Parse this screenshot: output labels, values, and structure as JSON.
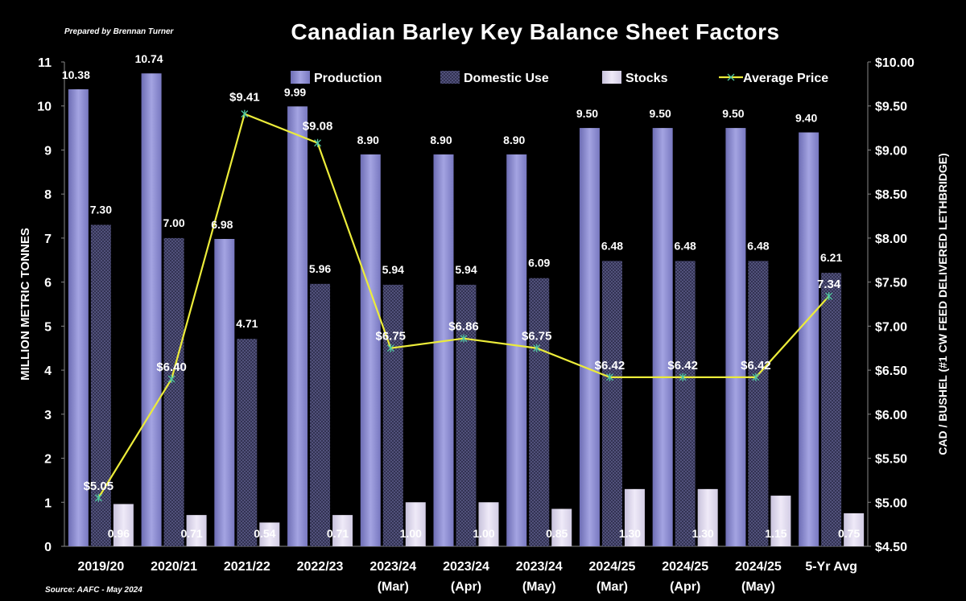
{
  "header": {
    "prepared_by": "Prepared by Brennan Turner",
    "source": "Source: AAFC - May 2024"
  },
  "chart_data": {
    "type": "bar",
    "title": "Canadian Barley Key Balance Sheet Factors",
    "ylabel": "MILLION METRIC TONNES",
    "y2label": "CAD / BUSHEL (#1 CW FEED DELIVERED LETHBRIDGE)",
    "ylim": [
      0,
      11
    ],
    "y2lim": [
      4.5,
      10.0
    ],
    "yticks": [
      "0",
      "1",
      "2",
      "3",
      "4",
      "5",
      "6",
      "7",
      "8",
      "9",
      "10",
      "11"
    ],
    "y2ticks": [
      "$4.50",
      "$5.00",
      "$5.50",
      "$6.00",
      "$6.50",
      "$7.00",
      "$7.50",
      "$8.00",
      "$8.50",
      "$9.00",
      "$9.50",
      "$10.00"
    ],
    "categories": [
      [
        "2019/20"
      ],
      [
        "2020/21"
      ],
      [
        "2021/22"
      ],
      [
        "2022/23"
      ],
      [
        "2023/24",
        "(Mar)"
      ],
      [
        "2023/24",
        "(Apr)"
      ],
      [
        "2023/24",
        "(May)"
      ],
      [
        "2024/25",
        "(Mar)"
      ],
      [
        "2024/25",
        "(Apr)"
      ],
      [
        "2024/25",
        "(May)"
      ],
      [
        "5-Yr Avg"
      ]
    ],
    "series": [
      {
        "name": "Production",
        "type": "bar",
        "color": "#8e8ed0",
        "values": [
          10.38,
          10.74,
          6.98,
          9.99,
          8.9,
          8.9,
          8.9,
          9.5,
          9.5,
          9.5,
          9.4
        ],
        "labels": [
          "10.38",
          "10.74",
          "6.98",
          "9.99",
          "8.90",
          "8.90",
          "8.90",
          "9.50",
          "9.50",
          "9.50",
          "9.40"
        ]
      },
      {
        "name": "Domestic Use",
        "type": "bar",
        "color": "#5c5c88",
        "pattern": "crosshatch",
        "values": [
          7.3,
          7.0,
          4.71,
          5.96,
          5.94,
          5.94,
          6.09,
          6.48,
          6.48,
          6.48,
          6.21
        ],
        "labels": [
          "7.30",
          "7.00",
          "4.71",
          "5.96",
          "5.94",
          "5.94",
          "6.09",
          "6.48",
          "6.48",
          "6.48",
          "6.21"
        ]
      },
      {
        "name": "Stocks",
        "type": "bar",
        "color": "#dcd6ec",
        "values": [
          0.96,
          0.71,
          0.54,
          0.71,
          1.0,
          1.0,
          0.85,
          1.3,
          1.3,
          1.15,
          0.75
        ],
        "labels": [
          "0.96",
          "0.71",
          "0.54",
          "0.71",
          "1.00",
          "1.00",
          "0.85",
          "1.30",
          "1.30",
          "1.15",
          "0.75"
        ]
      },
      {
        "name": "Average Price",
        "type": "line",
        "axis": "secondary",
        "color": "#ecec3a",
        "values": [
          5.05,
          6.4,
          9.41,
          9.08,
          6.75,
          6.86,
          6.75,
          6.42,
          6.42,
          6.42,
          7.34
        ],
        "labels": [
          "$5.05",
          "$6.40",
          "$9.41",
          "$9.08",
          "$6.75",
          "$6.86",
          "$6.75",
          "$6.42",
          "$6.42",
          "$6.42",
          "7.34"
        ]
      }
    ],
    "legend_position": "top",
    "grid": false
  }
}
